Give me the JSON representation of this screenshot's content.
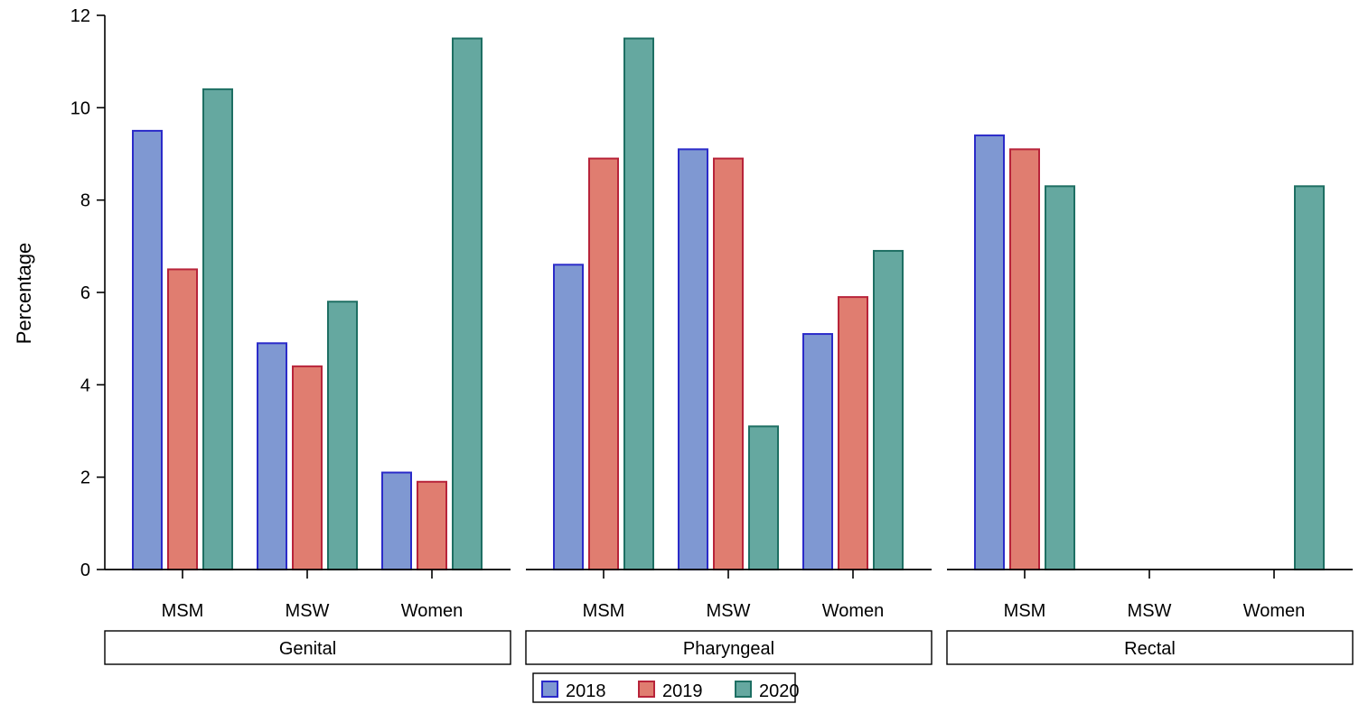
{
  "chart_data": {
    "type": "bar",
    "title": "",
    "ylabel": "Percentage",
    "xlabel": "",
    "ylim": [
      0,
      12
    ],
    "yticks": [
      0,
      2,
      4,
      6,
      8,
      10,
      12
    ],
    "grid": false,
    "legend_position": "bottom",
    "categories": [
      "MSM",
      "MSW",
      "Women"
    ],
    "series_names": [
      "2018",
      "2019",
      "2020"
    ],
    "colors": {
      "2018": {
        "fill": "#7f98d2",
        "stroke": "#2b2bc9"
      },
      "2019": {
        "fill": "#e07d70",
        "stroke": "#b8243a"
      },
      "2020": {
        "fill": "#65a8a0",
        "stroke": "#1e6f63"
      }
    },
    "panels": [
      {
        "label": "Genital",
        "series": [
          {
            "name": "2018",
            "values": [
              9.5,
              4.9,
              2.1
            ]
          },
          {
            "name": "2019",
            "values": [
              6.5,
              4.4,
              1.9
            ]
          },
          {
            "name": "2020",
            "values": [
              10.4,
              5.8,
              11.5
            ]
          }
        ]
      },
      {
        "label": "Pharyngeal",
        "series": [
          {
            "name": "2018",
            "values": [
              6.6,
              9.1,
              5.1
            ]
          },
          {
            "name": "2019",
            "values": [
              8.9,
              8.9,
              5.9
            ]
          },
          {
            "name": "2020",
            "values": [
              11.5,
              3.1,
              6.9
            ]
          }
        ]
      },
      {
        "label": "Rectal",
        "series": [
          {
            "name": "2018",
            "values": [
              9.4,
              0,
              0
            ]
          },
          {
            "name": "2019",
            "values": [
              9.1,
              0,
              0
            ]
          },
          {
            "name": "2020",
            "values": [
              8.3,
              0,
              8.3
            ]
          }
        ]
      }
    ]
  }
}
